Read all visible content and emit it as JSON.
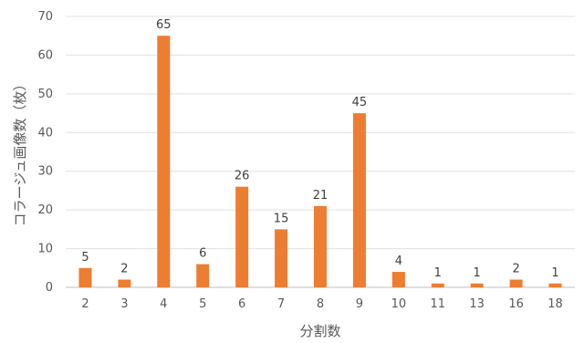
{
  "chart_data": {
    "type": "bar",
    "categories": [
      "2",
      "3",
      "4",
      "5",
      "6",
      "7",
      "8",
      "9",
      "10",
      "11",
      "13",
      "16",
      "18"
    ],
    "values": [
      5,
      2,
      65,
      6,
      26,
      15,
      21,
      45,
      4,
      1,
      1,
      2,
      1
    ],
    "title": "",
    "xlabel": "分割数",
    "ylabel": "コラージュ画像数（枚）",
    "ylim": [
      0,
      70
    ],
    "yticks": [
      0,
      10,
      20,
      30,
      40,
      50,
      60,
      70
    ],
    "grid": true,
    "bar_color": "#ED7D31",
    "grid_color": "#E0E0E0",
    "legend": "none"
  }
}
